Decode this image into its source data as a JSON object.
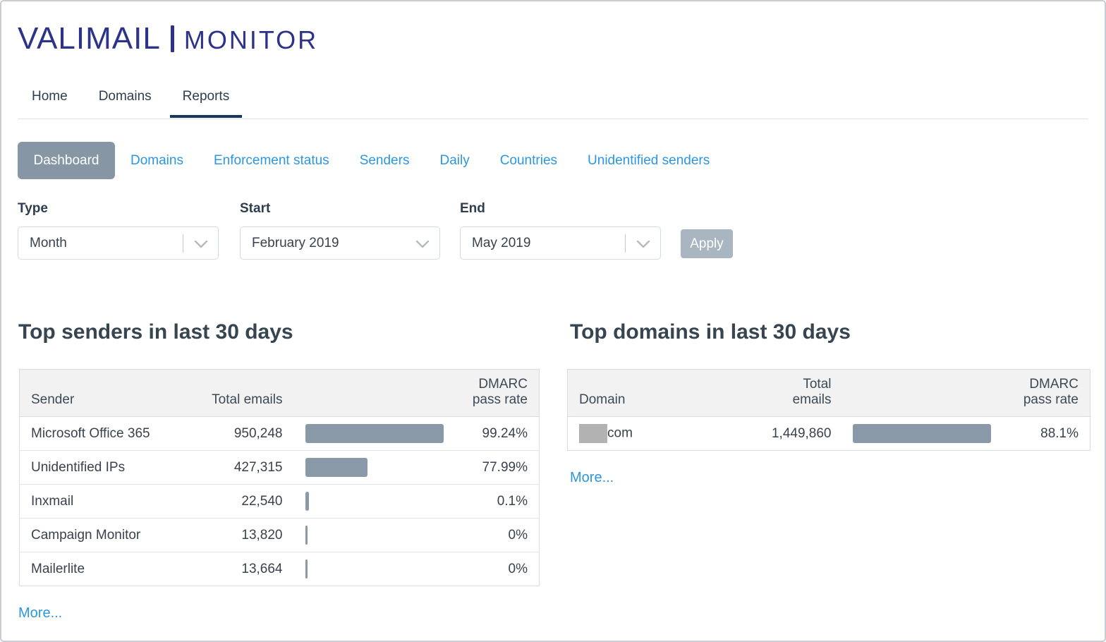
{
  "brand": {
    "name": "VALIMAIL",
    "separator": "|",
    "product": "MONITOR"
  },
  "nav": {
    "items": [
      {
        "label": "Home",
        "active": false
      },
      {
        "label": "Domains",
        "active": false
      },
      {
        "label": "Reports",
        "active": true
      }
    ]
  },
  "subnav": {
    "active_item": "Dashboard",
    "items": [
      "Dashboard",
      "Domains",
      "Enforcement status",
      "Senders",
      "Daily",
      "Countries",
      "Unidentified senders"
    ]
  },
  "filters": {
    "type_label": "Type",
    "type_value": "Month",
    "start_label": "Start",
    "start_value": "February 2019",
    "end_label": "End",
    "end_value": "May 2019",
    "apply_label": "Apply"
  },
  "top_senders": {
    "title": "Top senders in last 30 days",
    "columns": {
      "name": "Sender",
      "total": "Total emails",
      "rate": "DMARC pass rate"
    },
    "rows": [
      {
        "name": "Microsoft Office 365",
        "total_emails": "950,248",
        "dmarc_pass_rate": "99.24%"
      },
      {
        "name": "Unidentified IPs",
        "total_emails": "427,315",
        "dmarc_pass_rate": "77.99%"
      },
      {
        "name": "Inxmail",
        "total_emails": "22,540",
        "dmarc_pass_rate": "0.1%"
      },
      {
        "name": "Campaign Monitor",
        "total_emails": "13,820",
        "dmarc_pass_rate": "0%"
      },
      {
        "name": "Mailerlite",
        "total_emails": "13,664",
        "dmarc_pass_rate": "0%"
      }
    ],
    "more_label": "More..."
  },
  "top_domains": {
    "title": "Top domains in last 30 days",
    "columns": {
      "name": "Domain",
      "total": "Total emails",
      "rate": "DMARC pass rate"
    },
    "rows": [
      {
        "name": "com",
        "redacted_prefix": true,
        "total_emails": "1,449,860",
        "dmarc_pass_rate": "88.1%"
      }
    ],
    "more_label": "More..."
  },
  "colors": {
    "brand_indigo": "#2d3388",
    "link_blue": "#2d96dd",
    "active_tab_underline": "#17375e",
    "active_subnav_button": "#8796a4",
    "apply_button": "#a9b6c1",
    "volume_bar": "#8a99a7",
    "redaction_block": "#b2b2b2",
    "table_header_bg": "#f2f2f2"
  }
}
